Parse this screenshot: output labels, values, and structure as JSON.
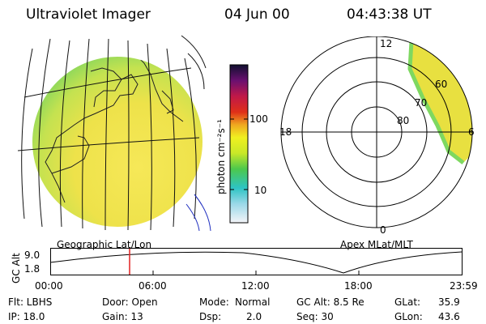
{
  "header": {
    "title": "Ultraviolet Imager",
    "date": "04 Jun 00",
    "time": "04:43:38 UT"
  },
  "colorbar": {
    "label": "photon cm⁻²s⁻¹",
    "ticks": [
      "100",
      "10"
    ],
    "scale": "log",
    "colors": [
      "#e8e8f0",
      "#2ec4c4",
      "#4cc84c",
      "#c8e828",
      "#f0f020",
      "#f0a820",
      "#e02020",
      "#8a1060",
      "#101030"
    ]
  },
  "geo_panel": {
    "label": "Geographic Lat/Lon",
    "disk_colors": [
      "#f4e450",
      "#e8e040",
      "#b8e050",
      "#7ed860"
    ]
  },
  "polar_panel": {
    "label": "Apex MLat/MLT",
    "mlt_labels": [
      "12",
      "18",
      "6",
      "0"
    ],
    "lat_labels": [
      "60",
      "70",
      "80"
    ]
  },
  "altitude_track": {
    "ylabel": "GC Alt",
    "yticks": [
      "9.0",
      "1.8"
    ],
    "xticks": [
      "00:00",
      "06:00",
      "12:00",
      "18:00",
      "23:59"
    ],
    "marker_time": "04:43",
    "marker_color": "#e02020"
  },
  "info": {
    "row1": {
      "flt": "Flt: LBHS",
      "door": "Door: Open",
      "mode_label": "Mode:",
      "mode": "Normal",
      "gc_alt": "GC Alt: 8.5 Re",
      "glat_label": "GLat:",
      "glat": "35.9"
    },
    "row2": {
      "ip": "IP: 18.0",
      "gain": "Gain: 13",
      "dsp_label": "Dsp:",
      "dsp": "2.0",
      "seq": "Seq: 30",
      "glon_label": "GLon:",
      "glon": "43.6"
    }
  }
}
